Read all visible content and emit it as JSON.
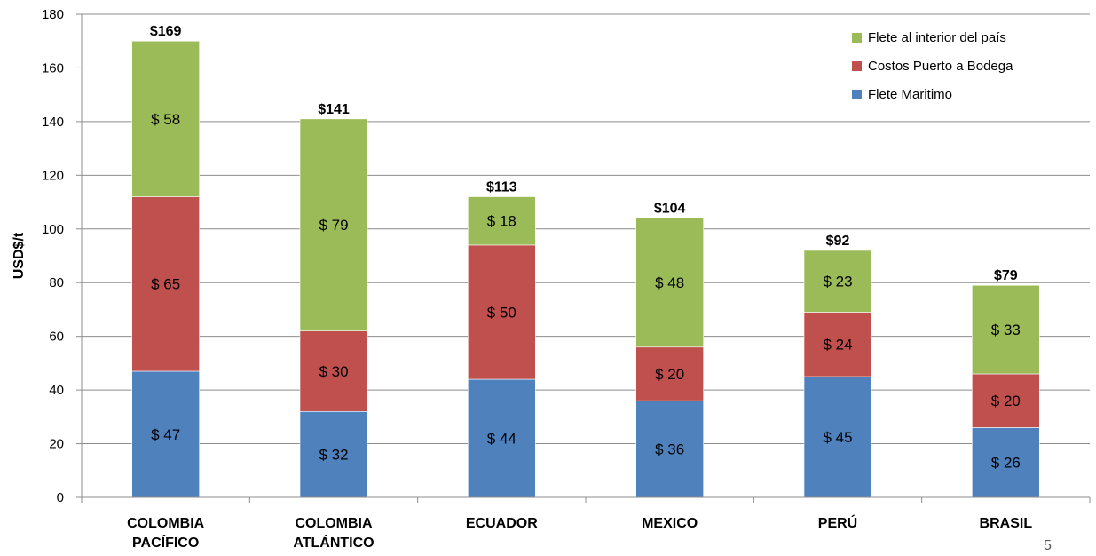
{
  "chart_data": {
    "type": "bar",
    "stacked": true,
    "ylabel": "USD$/t",
    "ylim": [
      0,
      180
    ],
    "yticks": [
      "0",
      "20",
      "40",
      "60",
      "80",
      "100",
      "120",
      "140",
      "160",
      "180"
    ],
    "grid": true,
    "legend_position": "top-right",
    "categories": [
      [
        "COLOMBIA",
        "PACÍFICO"
      ],
      [
        "COLOMBIA",
        "ATLÁNTICO"
      ],
      [
        "ECUADOR"
      ],
      [
        "MEXICO"
      ],
      [
        "PERÚ"
      ],
      [
        "BRASIL"
      ]
    ],
    "series": [
      {
        "name": "Flete Maritimo",
        "color": "#4f81bd",
        "values": [
          47,
          32,
          44,
          36,
          45,
          26
        ],
        "labels": [
          "$ 47",
          "$ 32",
          "$ 44",
          "$ 36",
          "$ 45",
          "$ 26"
        ]
      },
      {
        "name": "Costos Puerto a Bodega",
        "color": "#c0504d",
        "values": [
          65,
          30,
          50,
          20,
          24,
          20
        ],
        "labels": [
          "$ 65",
          "$ 30",
          "$ 50",
          "$ 20",
          "$ 24",
          "$ 20"
        ]
      },
      {
        "name": "Flete al interior del país",
        "color": "#9bbb59",
        "values": [
          58,
          79,
          18,
          48,
          23,
          33
        ],
        "labels": [
          "$ 58",
          "$ 79",
          "$ 18",
          "$ 48",
          "$ 23",
          "$ 33"
        ]
      }
    ],
    "totals": [
      "$169",
      "$141",
      "$113",
      "$104",
      "$92",
      "$79"
    ]
  },
  "page_number": "5"
}
